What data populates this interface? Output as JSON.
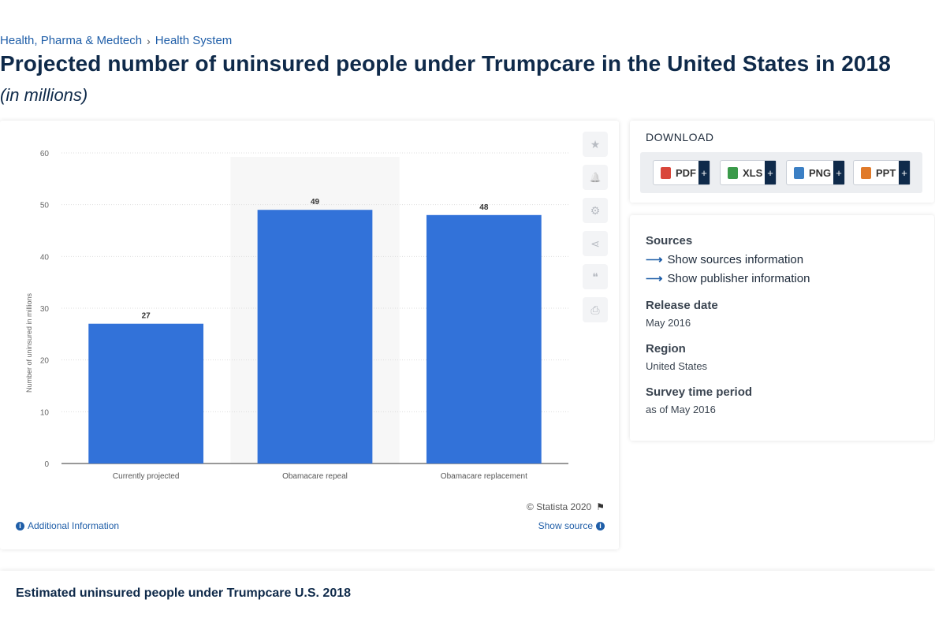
{
  "breadcrumb": {
    "items": [
      "Health, Pharma & Medtech",
      "Health System"
    ],
    "separator": "›"
  },
  "page": {
    "title": "Projected number of uninsured people under Trumpcare in the United States in 2018",
    "subtitle": "(in millions)"
  },
  "chart_data": {
    "type": "bar",
    "categories": [
      "Currently projected",
      "Obamacare repeal",
      "Obamacare replacement"
    ],
    "values": [
      27,
      49,
      48
    ],
    "data_labels": [
      "27",
      "49",
      "48"
    ],
    "ylabel": "Number of uninsured in millions",
    "xlabel": "",
    "ylim": [
      0,
      60
    ],
    "yticks": [
      "0",
      "10",
      "20",
      "30",
      "40",
      "50",
      "60"
    ],
    "grid": true,
    "highlighted_category": "Obamacare repeal",
    "bar_color": "#3272d9",
    "grid_color": "#dddddd",
    "highlight_color": "#f7f7f7"
  },
  "chart_tools": [
    {
      "icon": "star-icon",
      "glyph": "★"
    },
    {
      "icon": "bell-icon",
      "glyph": "🔔"
    },
    {
      "icon": "gear-icon",
      "glyph": "⚙"
    },
    {
      "icon": "share-icon",
      "glyph": "⋖"
    },
    {
      "icon": "quote-icon",
      "glyph": "❝"
    },
    {
      "icon": "print-icon",
      "glyph": "⎙"
    }
  ],
  "chart_footer": {
    "copyright": "© Statista 2020",
    "additional_info": "Additional Information",
    "show_source": "Show source"
  },
  "download": {
    "title": "DOWNLOAD",
    "buttons": [
      {
        "label": "PDF",
        "color": "#d9463a"
      },
      {
        "label": "XLS",
        "color": "#3a9a4a"
      },
      {
        "label": "PNG",
        "color": "#3b7fc4"
      },
      {
        "label": "PPT",
        "color": "#e07a2a"
      }
    ],
    "plus": "+"
  },
  "info": {
    "sources_heading": "Sources",
    "show_sources": "Show sources information",
    "show_publisher": "Show publisher information",
    "release_date_heading": "Release date",
    "release_date": "May 2016",
    "region_heading": "Region",
    "region": "United States",
    "survey_heading": "Survey time period",
    "survey": "as of May 2016"
  },
  "bottom": {
    "title": "Estimated uninsured people under Trumpcare U.S. 2018"
  }
}
